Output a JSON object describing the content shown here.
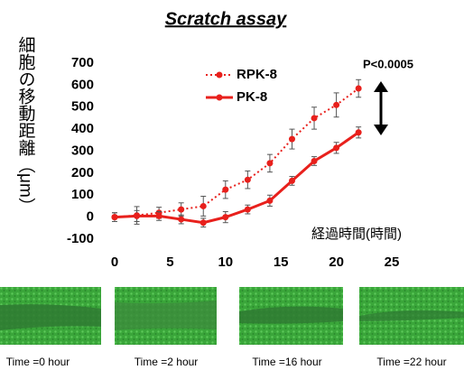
{
  "chart_data": {
    "type": "line",
    "title": "Scratch assay",
    "ylabel": "細胞の移動距離（μm）",
    "xlabel": "経過時間(時間)",
    "annotation": "P<0.0005",
    "x": [
      0,
      2,
      4,
      6,
      8,
      10,
      12,
      14,
      16,
      18,
      20,
      22
    ],
    "series": [
      {
        "name": "RPK-8",
        "color": "#e8201c",
        "dash": true,
        "values": [
          0,
          8,
          20,
          35,
          50,
          125,
          170,
          245,
          355,
          450,
          510,
          585
        ],
        "errors": [
          20,
          40,
          25,
          30,
          45,
          40,
          40,
          40,
          45,
          50,
          55,
          40
        ]
      },
      {
        "name": "PK-8",
        "color": "#e8201c",
        "dash": false,
        "values": [
          0,
          5,
          5,
          -10,
          -25,
          0,
          35,
          75,
          165,
          255,
          315,
          385
        ],
        "errors": [
          20,
          25,
          20,
          20,
          20,
          25,
          20,
          25,
          20,
          20,
          25,
          25
        ]
      }
    ],
    "xlim": [
      0,
      25
    ],
    "xticks": [
      0,
      5,
      10,
      15,
      20,
      25
    ],
    "ylim": [
      -100,
      700
    ],
    "yticks": [
      -100,
      0,
      100,
      200,
      300,
      400,
      500,
      600,
      700
    ],
    "grid": false
  },
  "panels": [
    "Time =0 hour",
    "Time =2 hour",
    "Time =16 hour",
    "Time =22 hour"
  ]
}
